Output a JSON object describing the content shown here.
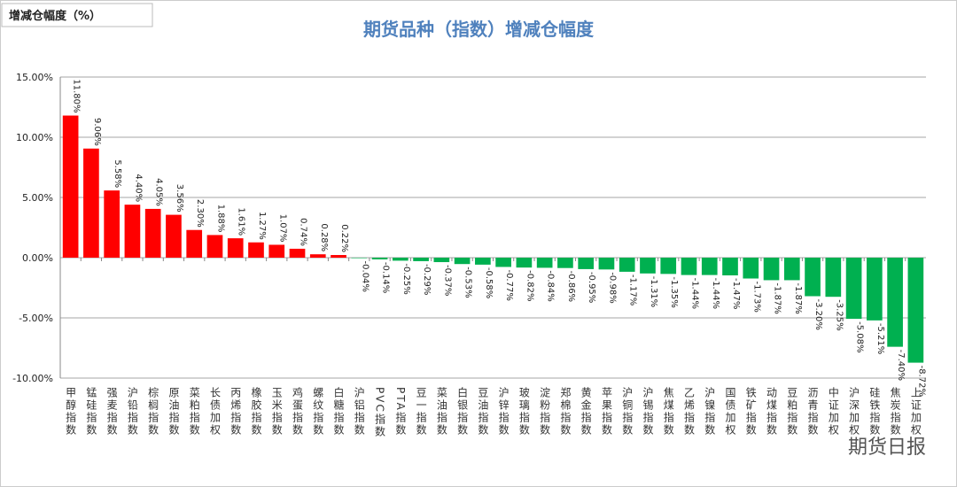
{
  "chart_data": {
    "type": "bar",
    "title": "期货品种（指数）增减仓幅度",
    "corner_label": "增减仓幅度（%）",
    "watermark": "期货日报",
    "categories": [
      "甲醇指数",
      "锰硅指数",
      "强麦指数",
      "沪铅指数",
      "棕榈指数",
      "原油指数",
      "菜粕指数",
      "长债加权",
      "丙烯指数",
      "橡胶指数",
      "玉米指数",
      "鸡蛋指数",
      "螺纹指数",
      "白糖指数",
      "沪铝指数",
      "PVC指数",
      "PTA指数",
      "豆一指数",
      "菜油指数",
      "白银指数",
      "豆油指数",
      "沪锌指数",
      "玻璃指数",
      "淀粉指数",
      "郑棉指数",
      "黄金指数",
      "苹果指数",
      "沪铜指数",
      "沪锡指数",
      "焦煤指数",
      "乙烯指数",
      "沪镍指数",
      "国债加权",
      "铁矿指数",
      "动煤指数",
      "豆粕指数",
      "沥青指数",
      "中证加权",
      "沪深加权",
      "硅铁指数",
      "焦炭指数",
      "上证加权"
    ],
    "values": [
      11.8,
      9.06,
      5.58,
      4.4,
      4.05,
      3.56,
      2.3,
      1.88,
      1.61,
      1.27,
      1.07,
      0.74,
      0.28,
      0.22,
      -0.04,
      -0.14,
      -0.25,
      -0.29,
      -0.37,
      -0.53,
      -0.58,
      -0.77,
      -0.82,
      -0.84,
      -0.86,
      -0.95,
      -0.98,
      -1.17,
      -1.31,
      -1.35,
      -1.44,
      -1.44,
      -1.47,
      -1.73,
      -1.87,
      -1.87,
      -3.2,
      -3.25,
      -5.08,
      -5.21,
      -7.4,
      -8.72
    ],
    "value_labels": [
      "11.80%",
      "9.06%",
      "5.58%",
      "4.40%",
      "4.05%",
      "3.56%",
      "2.30%",
      "1.88%",
      "1.61%",
      "1.27%",
      "1.07%",
      "0.74%",
      "0.28%",
      "0.22%",
      "-0.04%",
      "-0.14%",
      "-0.25%",
      "-0.29%",
      "-0.37%",
      "-0.53%",
      "-0.58%",
      "-0.77%",
      "-0.82%",
      "-0.84%",
      "-0.86%",
      "-0.95%",
      "-0.98%",
      "-1.17%",
      "-1.31%",
      "-1.35%",
      "-1.44%",
      "-1.44%",
      "-1.47%",
      "-1.73%",
      "-1.87%",
      "-1.87%",
      "-3.20%",
      "-3.25%",
      "-5.08%",
      "-5.21%",
      "-7.40%",
      "-8.72%"
    ],
    "positive_color": "#ff0000",
    "negative_color": "#00b050",
    "ylim": [
      -10,
      15
    ],
    "yticks": [
      {
        "value": -10,
        "label": "-10.00%"
      },
      {
        "value": -5,
        "label": "-5.00%"
      },
      {
        "value": 0,
        "label": "0.00%"
      },
      {
        "value": 5,
        "label": "5.00%"
      },
      {
        "value": 10,
        "label": "10.00%"
      },
      {
        "value": 15,
        "label": "15.00%"
      }
    ],
    "grid": true
  }
}
